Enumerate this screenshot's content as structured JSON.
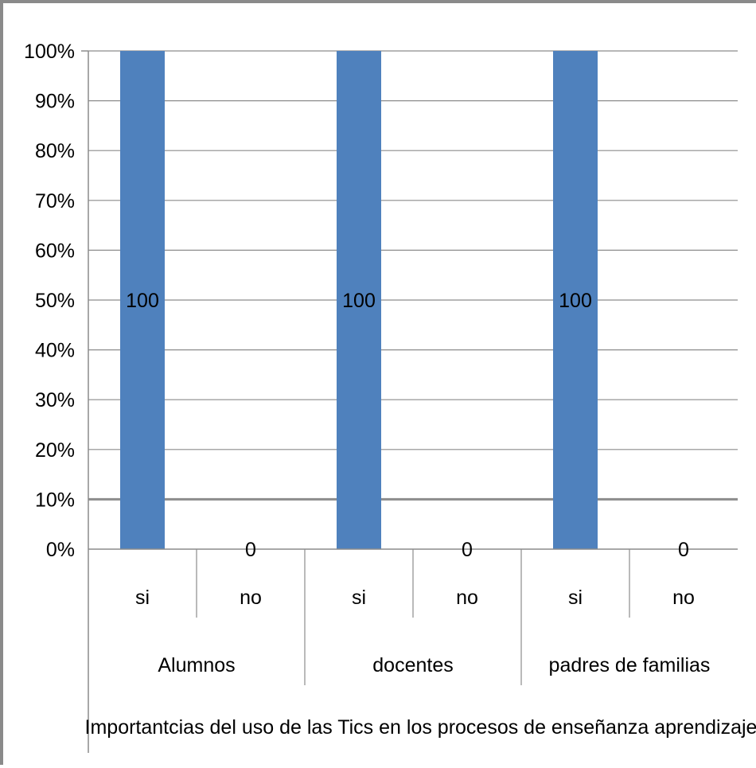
{
  "chart_data": {
    "type": "bar",
    "title": "",
    "ylabel": "",
    "xlabel": "Importantcias del uso de las Tics en los procesos de enseñanza aprendizaje",
    "ylim": [
      0,
      100
    ],
    "y_ticks": [
      "0%",
      "10%",
      "20%",
      "30%",
      "40%",
      "50%",
      "60%",
      "70%",
      "80%",
      "90%",
      "100%"
    ],
    "groups": [
      "Alumnos",
      "docentes",
      "padres de familias"
    ],
    "categories": [
      "si",
      "no",
      "si",
      "no",
      "si",
      "no"
    ],
    "values": [
      100,
      0,
      100,
      0,
      100,
      0
    ],
    "data_labels": [
      "100",
      "0",
      "100",
      "0",
      "100",
      "0"
    ],
    "bar_color": "#4f81bd",
    "grid": true,
    "legend": "none"
  }
}
